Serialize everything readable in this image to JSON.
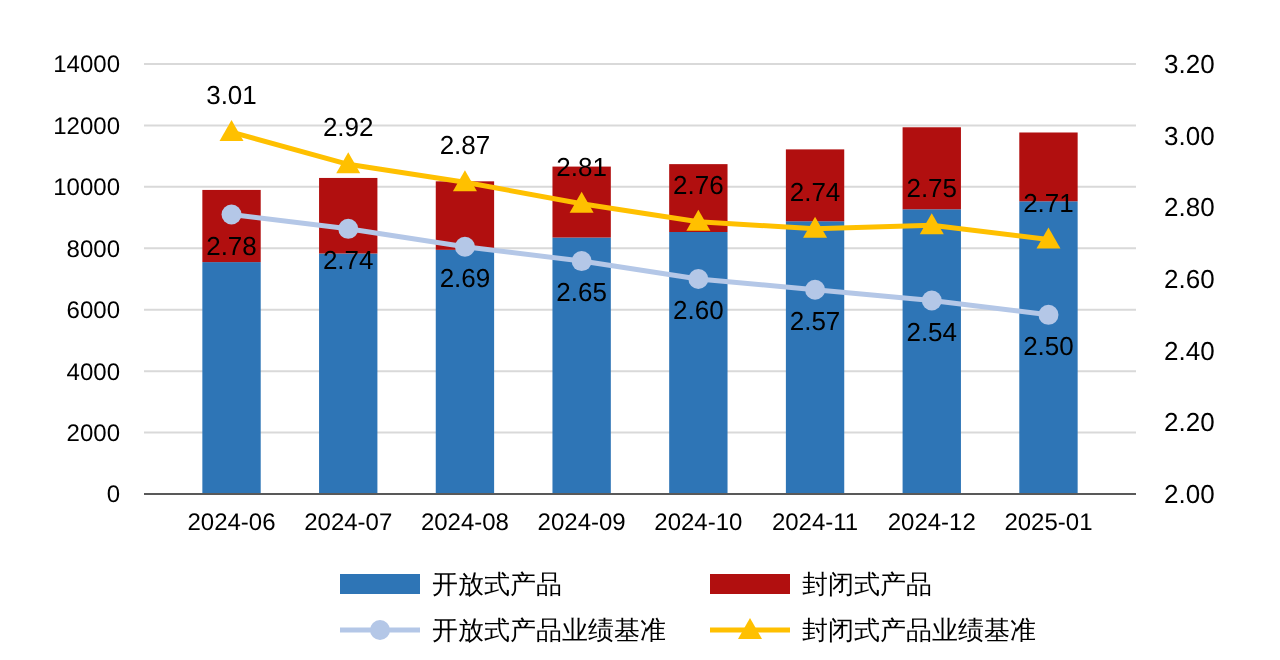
{
  "chart_data": {
    "type": "bar",
    "stacked": true,
    "categories": [
      "2024-06",
      "2024-07",
      "2024-08",
      "2024-09",
      "2024-10",
      "2024-11",
      "2024-12",
      "2025-01"
    ],
    "series": [
      {
        "name": "开放式产品",
        "color": "#2e75b6",
        "values": [
          7550,
          7830,
          7950,
          8350,
          8530,
          8880,
          9270,
          9530
        ]
      },
      {
        "name": "封闭式产品",
        "color": "#b10f0f",
        "values": [
          2350,
          2460,
          2230,
          2310,
          2210,
          2340,
          2670,
          2240
        ]
      },
      {
        "name": "开放式产品业绩基准",
        "type": "line",
        "axis": "y2",
        "marker": "circle",
        "color": "#b4c7e7",
        "values": [
          2.78,
          2.74,
          2.69,
          2.65,
          2.6,
          2.57,
          2.54,
          2.5
        ],
        "value_labels": [
          "2.78",
          "2.74",
          "2.69",
          "2.65",
          "2.60",
          "2.57",
          "2.54",
          "2.50"
        ]
      },
      {
        "name": "封闭式产品业绩基准",
        "type": "line",
        "axis": "y2",
        "marker": "triangle",
        "color": "#ffc000",
        "values": [
          3.01,
          2.92,
          2.87,
          2.81,
          2.76,
          2.74,
          2.75,
          2.71
        ],
        "value_labels": [
          "3.01",
          "2.92",
          "2.87",
          "2.81",
          "2.76",
          "2.74",
          "2.75",
          "2.71"
        ]
      }
    ],
    "ylim": [
      0,
      14000
    ],
    "yticks": [
      0,
      2000,
      4000,
      6000,
      8000,
      10000,
      12000,
      14000
    ],
    "y2lim": [
      2.0,
      3.2
    ],
    "y2ticks": [
      {
        "value": 2.0,
        "label": "2.00"
      },
      {
        "value": 2.2,
        "label": "2.20"
      },
      {
        "value": 2.4,
        "label": "2.40"
      },
      {
        "value": 2.6,
        "label": "2.60"
      },
      {
        "value": 2.8,
        "label": "2.80"
      },
      {
        "value": 3.0,
        "label": "3.00"
      },
      {
        "value": 3.2,
        "label": "3.20"
      }
    ],
    "grid": "y",
    "legend": "bottom"
  }
}
